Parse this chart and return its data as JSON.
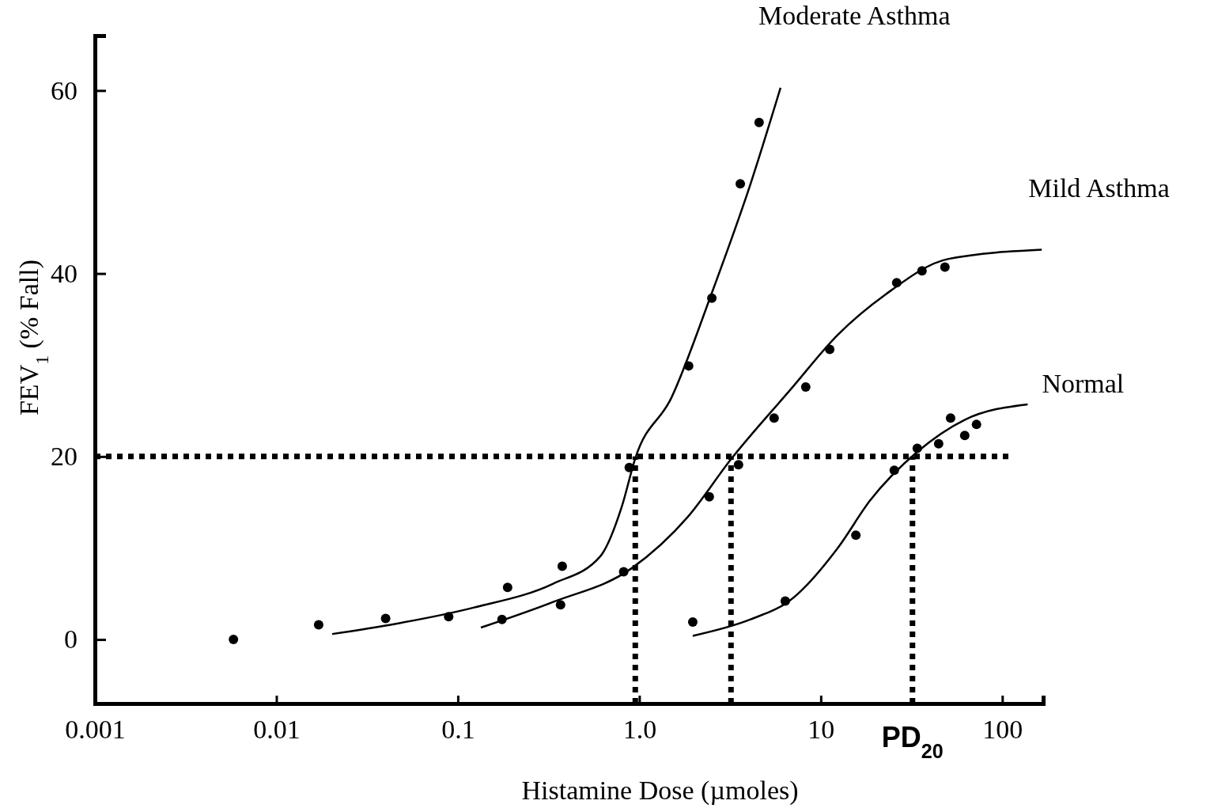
{
  "chart_data": {
    "type": "scatter",
    "xlabel": "Histamine Dose (µmoles)",
    "ylabel": "FEV$_{1}$ (% Fall)",
    "log": "x",
    "xlim": [
      0.001,
      168
    ],
    "ylim": [
      -7,
      66
    ],
    "xticks": [
      0.001,
      0.01,
      0.1,
      {
        "value": 1,
        "label": "1.0"
      },
      10,
      100
    ],
    "yticks": [
      0,
      20,
      40,
      60
    ],
    "grid": false,
    "legend": false,
    "annotations": [
      {
        "text": "PD$_{20}$",
        "x": 32,
        "y": -7
      }
    ],
    "series": [
      {
        "color": "#000000",
        "marker": "circle",
        "x": [
          0.0058,
          0.0171,
          0.04,
          0.089,
          0.188,
          0.376,
          0.88,
          1.87,
          2.51,
          3.6,
          4.57
        ],
        "values": [
          0,
          1.6,
          2.3,
          2.5,
          5.7,
          8,
          18.8,
          29.9,
          37.3,
          49.8,
          56.5
        ]
      },
      {
        "color": "#000000",
        "marker": "circle",
        "x": [
          0.175,
          0.368,
          0.82,
          2.43,
          3.52,
          5.53,
          8.26,
          11.2,
          26.2,
          36.1,
          48.3
        ],
        "values": [
          2.2,
          3.8,
          7.4,
          15.6,
          19.1,
          24.2,
          27.6,
          31.7,
          39,
          40.3,
          40.7
        ]
      },
      {
        "color": "#000000",
        "marker": "circle",
        "x": [
          1.97,
          6.37,
          15.6,
          25.4,
          34,
          44.6,
          51.9,
          62.1,
          72.1
        ],
        "values": [
          1.9,
          4.2,
          11.4,
          18.5,
          20.9,
          21.4,
          24.2,
          22.3,
          23.5
        ]
      },
      {
        "type": "line",
        "name": "Moderate Asthma",
        "color": "#000000",
        "marker": "none",
        "line_style": "solid",
        "x": [
          0.0203,
          0.045,
          0.123,
          0.335,
          0.61,
          0.8,
          0.95,
          1.5,
          2.49,
          4.1,
          6
        ],
        "values": [
          0.6,
          1.7,
          3.5,
          6.1,
          9.1,
          14.5,
          19.8,
          26.4,
          37.7,
          49.8,
          60.3
        ]
      },
      {
        "type": "line",
        "name": "Mild Asthma",
        "color": "#000000",
        "marker": "none",
        "line_style": "solid",
        "x": [
          0.134,
          0.335,
          0.91,
          1.85,
          3.2,
          6.8,
          12.4,
          22.7,
          50.6,
          165
        ],
        "values": [
          1.3,
          4.1,
          7.8,
          13.4,
          19.7,
          27.3,
          33.3,
          37.7,
          41.6,
          42.6
        ]
      },
      {
        "type": "line",
        "name": "Normal",
        "color": "#000000",
        "marker": "none",
        "line_style": "solid",
        "x": [
          1.97,
          4.1,
          6.8,
          12.4,
          18.7,
          34,
          62,
          138
        ],
        "values": [
          0.4,
          2.2,
          4.3,
          10,
          15.2,
          20.5,
          24,
          25.7
        ]
      },
      {
        "type": "line",
        "color": "#000000",
        "marker": "none",
        "line_style": "dotted",
        "x": [
          0.001,
          110
        ],
        "values": [
          20,
          20
        ]
      },
      {
        "type": "line",
        "color": "#000000",
        "marker": "none",
        "line_style": "dotted",
        "x": [
          0.95,
          0.95
        ],
        "values": [
          -7,
          20
        ]
      },
      {
        "type": "line",
        "color": "#000000",
        "marker": "none",
        "line_style": "dotted",
        "x": [
          3.2,
          3.2
        ],
        "values": [
          -7,
          20
        ]
      },
      {
        "type": "line",
        "color": "#000000",
        "marker": "none",
        "line_style": "dotted",
        "x": [
          32,
          32
        ],
        "values": [
          -7,
          20
        ]
      }
    ]
  }
}
